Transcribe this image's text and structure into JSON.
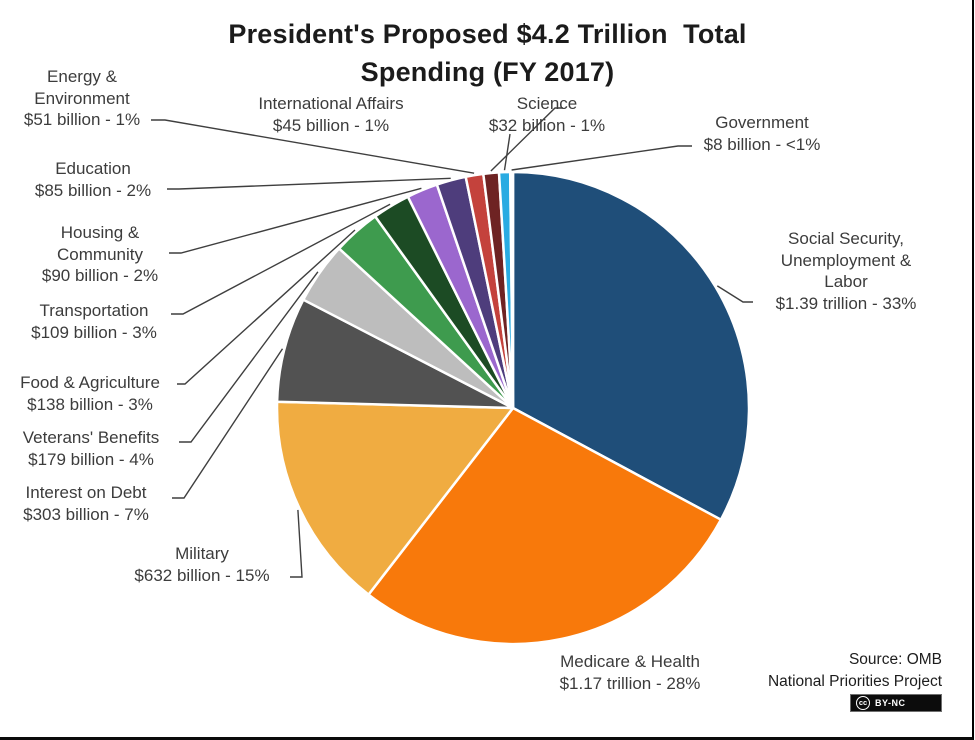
{
  "page": {
    "title_line1": "President's Proposed $4.2 Trillion  Total",
    "title_line2": "Spending (FY 2017)",
    "source_line1": "Source: OMB",
    "source_line2": "National Priorities Project",
    "license": {
      "cc": "cc",
      "label": "BY-NC"
    }
  },
  "chart_data": {
    "type": "pie",
    "title": "President's Proposed $4.2 Trillion Total Spending (FY 2017)",
    "total_label": "$4.2 Trillion",
    "direction": "clockwise",
    "start_angle_deg": 0,
    "legend_position": "callout-labels",
    "source_lines": [
      "Source: OMB",
      "National Priorities Project"
    ],
    "license_label": "BY-NC",
    "slices": [
      {
        "key": "social-security",
        "name": "Social Security, Unemployment & Labor",
        "value_billions": 1390,
        "percent_label": "33%",
        "display": "$1.39 trillion - 33%",
        "color": "#1F4E79",
        "label_lines": [
          "Social Security,",
          "Unemployment &",
          "Labor",
          "$1.39 trillion - 33%"
        ]
      },
      {
        "key": "medicare-health",
        "name": "Medicare & Health",
        "value_billions": 1170,
        "percent_label": "28%",
        "display": "$1.17 trillion - 28%",
        "color": "#F8790B",
        "label_lines": [
          "Medicare & Health",
          "$1.17 trillion - 28%"
        ]
      },
      {
        "key": "military",
        "name": "Military",
        "value_billions": 632,
        "percent_label": "15%",
        "display": "$632 billion - 15%",
        "color": "#F0AC41",
        "label_lines": [
          "Military",
          "$632 billion - 15%"
        ]
      },
      {
        "key": "interest-on-debt",
        "name": "Interest on Debt",
        "value_billions": 303,
        "percent_label": "7%",
        "display": "$303 billion - 7%",
        "color": "#525252",
        "label_lines": [
          "Interest on Debt",
          "$303 billion - 7%"
        ]
      },
      {
        "key": "veterans-benefits",
        "name": "Veterans' Benefits",
        "value_billions": 179,
        "percent_label": "4%",
        "display": "$179 billion - 4%",
        "color": "#BDBDBD",
        "label_lines": [
          "Veterans' Benefits",
          "$179 billion - 4%"
        ]
      },
      {
        "key": "food-agriculture",
        "name": "Food & Agriculture",
        "value_billions": 138,
        "percent_label": "3%",
        "display": "$138 billion - 3%",
        "color": "#3E9B4E",
        "label_lines": [
          "Food & Agriculture",
          "$138 billion - 3%"
        ]
      },
      {
        "key": "transportation",
        "name": "Transportation",
        "value_billions": 109,
        "percent_label": "3%",
        "display": "$109 billion - 3%",
        "color": "#1C4B24",
        "label_lines": [
          "Transportation",
          "$109 billion - 3%"
        ]
      },
      {
        "key": "housing-community",
        "name": "Housing & Community",
        "value_billions": 90,
        "percent_label": "2%",
        "display": "$90 billion - 2%",
        "color": "#9B67CE",
        "label_lines": [
          "Housing &",
          "Community",
          "$90 billion - 2%"
        ]
      },
      {
        "key": "education",
        "name": "Education",
        "value_billions": 85,
        "percent_label": "2%",
        "display": "$85 billion - 2%",
        "color": "#4E3D7C",
        "label_lines": [
          "Education",
          "$85 billion - 2%"
        ]
      },
      {
        "key": "energy-environment",
        "name": "Energy & Environment",
        "value_billions": 51,
        "percent_label": "1%",
        "display": "$51 billion - 1%",
        "color": "#C4423C",
        "label_lines": [
          "Energy &",
          "Environment",
          "$51 billion - 1%"
        ]
      },
      {
        "key": "international-affairs",
        "name": "International Affairs",
        "value_billions": 45,
        "percent_label": "1%",
        "display": "$45 billion - 1%",
        "color": "#6E2323",
        "label_lines": [
          "International Affairs",
          "$45 billion - 1%"
        ]
      },
      {
        "key": "science",
        "name": "Science",
        "value_billions": 32,
        "percent_label": "1%",
        "display": "$32 billion - 1%",
        "color": "#29ABE2",
        "label_lines": [
          "Science",
          "$32 billion - 1%"
        ]
      },
      {
        "key": "government",
        "name": "Government",
        "value_billions": 8,
        "percent_label": "<1%",
        "display": "$8 billion - <1%",
        "color": "#FFFFFF",
        "label_lines": [
          "Government",
          "$8 billion - <1%"
        ]
      }
    ]
  }
}
